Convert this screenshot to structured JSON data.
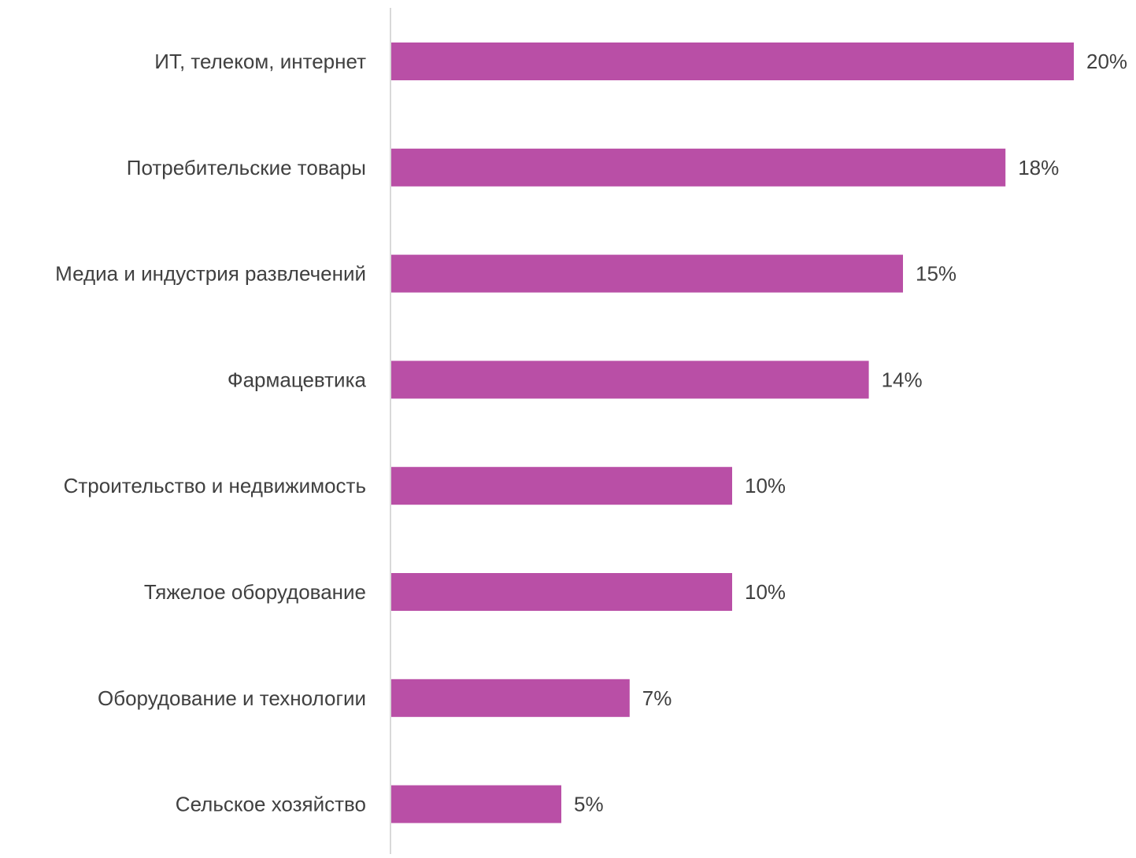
{
  "chart_data": {
    "type": "bar",
    "orientation": "horizontal",
    "categories": [
      "ИТ, телеком, интернет",
      "Потребительские товары",
      "Медиа и индустрия развлечений",
      "Фармацевтика",
      "Строительство и недвижимость",
      "Тяжелое оборудование",
      "Оборудование и технологии",
      "Сельское хозяйство"
    ],
    "values": [
      20,
      18,
      15,
      14,
      10,
      10,
      7,
      5
    ],
    "data_labels": [
      "20%",
      "18%",
      "15%",
      "14%",
      "10%",
      "10%",
      "7%",
      "5%"
    ],
    "xlim": [
      0,
      20
    ],
    "bar_color": "#B94FA6",
    "axis_color": "#D9D9D9",
    "label_color": "#404040",
    "grid": false,
    "legend": "none"
  }
}
